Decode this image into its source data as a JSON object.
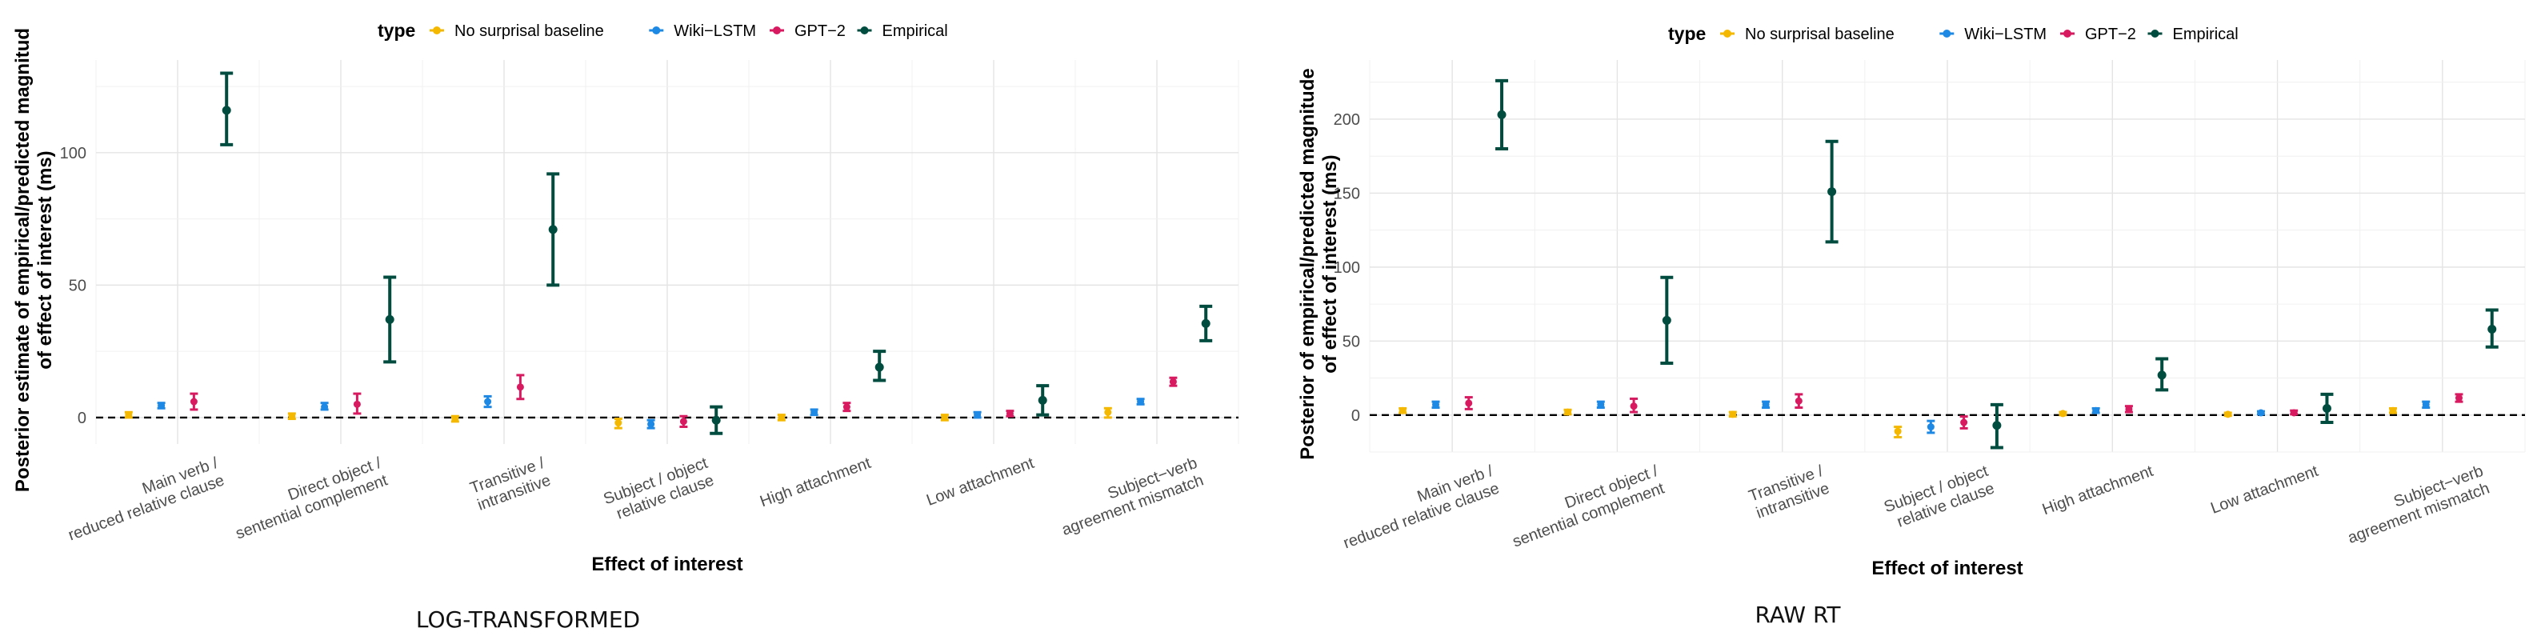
{
  "chart_data": [
    {
      "type": "scatter",
      "caption": "LOG-TRANSFORMED",
      "legend_title": "type",
      "legend_placement": "top",
      "xlabel": "Effect of interest",
      "ylabel": [
        "Posterior estimate of empirical/predicted magnitud",
        "of effect of interest (ms)"
      ],
      "ylim": [
        -10,
        135
      ],
      "yticks": [
        0,
        50,
        100
      ],
      "grid": true,
      "reference_line": 0,
      "categories": [
        [
          "Main verb /",
          "reduced relative clause"
        ],
        [
          "Direct object /",
          "sentential complement"
        ],
        [
          "Transitive /",
          "intransitive"
        ],
        [
          "Subject / object",
          "relative clause"
        ],
        [
          "High attachment"
        ],
        [
          "Low attachment"
        ],
        [
          "Subject−verb",
          "agreement mismatch"
        ]
      ],
      "series": [
        {
          "name": "No surprisal baseline",
          "color": "#F5B800",
          "mean": [
            1,
            0.5,
            -0.5,
            -2,
            0,
            0,
            2
          ],
          "lower": [
            0,
            -0.5,
            -1.5,
            -4,
            -1,
            -1,
            0
          ],
          "upper": [
            2,
            1.5,
            0.5,
            -0.5,
            1,
            1,
            3.5
          ]
        },
        {
          "name": "Wiki−LSTM",
          "color": "#1E88E5",
          "mean": [
            4.5,
            4,
            6,
            -2.5,
            2,
            1,
            6
          ],
          "lower": [
            3.5,
            3,
            4,
            -4,
            1,
            0,
            5
          ],
          "upper": [
            5.5,
            5.5,
            8,
            -1,
            3,
            2,
            7
          ]
        },
        {
          "name": "GPT−2",
          "color": "#D81B60",
          "mean": [
            6,
            5,
            11.5,
            -1.5,
            4,
            1.5,
            13.5
          ],
          "lower": [
            3,
            1.5,
            7,
            -3.5,
            2.5,
            0.5,
            12
          ],
          "upper": [
            9,
            9,
            16,
            0.5,
            5.5,
            2.5,
            15
          ]
        },
        {
          "name": "Empirical",
          "color": "#004D40",
          "mean": [
            116,
            37,
            71,
            -1,
            19,
            6.5,
            35.5
          ],
          "lower": [
            103,
            21,
            50,
            -6,
            14,
            1,
            29
          ],
          "upper": [
            130,
            53,
            92,
            4,
            25,
            12,
            42
          ]
        }
      ]
    },
    {
      "type": "scatter",
      "caption": "RAW RT",
      "legend_title": "type",
      "legend_placement": "top",
      "xlabel": "Effect of interest",
      "ylabel": [
        "Posterior of empirical/predicted magnitude",
        "of effect of interest (ms)"
      ],
      "ylim": [
        -25,
        240
      ],
      "yticks": [
        0,
        50,
        100,
        150,
        200
      ],
      "grid": true,
      "reference_line": 0,
      "categories": [
        [
          "Main verb /",
          "reduced relative clause"
        ],
        [
          "Direct object /",
          "sentential complement"
        ],
        [
          "Transitive /",
          "intransitive"
        ],
        [
          "Subject / object",
          "relative clause"
        ],
        [
          "High attachment"
        ],
        [
          "Low attachment"
        ],
        [
          "Subject−verb",
          "agreement mismatch"
        ]
      ],
      "series": [
        {
          "name": "No surprisal baseline",
          "color": "#F5B800",
          "mean": [
            3,
            2,
            0.5,
            -11,
            1,
            0.5,
            3
          ],
          "lower": [
            1.5,
            0.5,
            -1,
            -15,
            0,
            -0.5,
            1.5
          ],
          "upper": [
            4.5,
            3.5,
            2,
            -8,
            2,
            1.5,
            4.5
          ]
        },
        {
          "name": "Wiki−LSTM",
          "color": "#1E88E5",
          "mean": [
            7,
            7,
            7,
            -8,
            3,
            1.5,
            7
          ],
          "lower": [
            5,
            5,
            5,
            -12,
            1.5,
            0.5,
            5
          ],
          "upper": [
            9,
            9,
            9,
            -4,
            4.5,
            2.5,
            9
          ]
        },
        {
          "name": "GPT−2",
          "color": "#D81B60",
          "mean": [
            8,
            6,
            9.5,
            -5,
            4,
            1.5,
            11.5
          ],
          "lower": [
            4,
            2,
            5,
            -9,
            2,
            0.5,
            9
          ],
          "upper": [
            12,
            11,
            14,
            -1,
            6,
            3,
            14
          ]
        },
        {
          "name": "Empirical",
          "color": "#004D40",
          "mean": [
            203,
            64,
            151,
            -7,
            27,
            4.5,
            58
          ],
          "lower": [
            180,
            35,
            117,
            -22,
            17,
            -5,
            46
          ],
          "upper": [
            226,
            93,
            185,
            7,
            38,
            14,
            71
          ]
        }
      ]
    }
  ]
}
